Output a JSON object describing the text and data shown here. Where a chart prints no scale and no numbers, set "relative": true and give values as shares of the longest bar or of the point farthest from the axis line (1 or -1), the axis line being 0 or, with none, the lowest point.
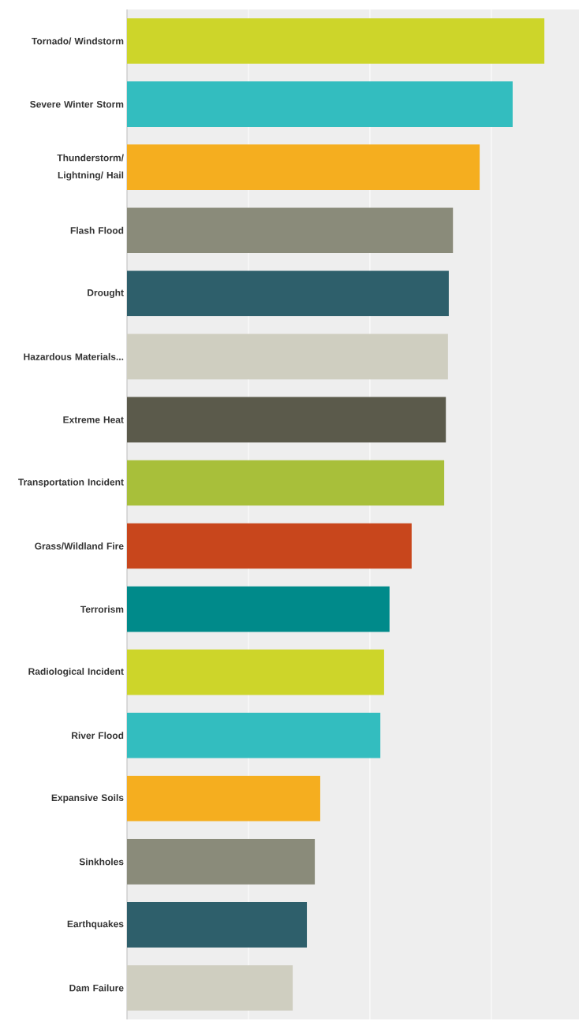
{
  "chart_data": {
    "type": "bar",
    "orientation": "horizontal",
    "relative": true,
    "grid": "x",
    "categories": [
      "Tornado/ Windstorm",
      "Severe Winter Storm",
      "Thunderstorm/ Lightning/ Hail",
      "Flash Flood",
      "Drought",
      "Hazardous Materials...",
      "Extreme Heat",
      "Transportation Incident",
      "Grass/Wildland Fire",
      "Terrorism",
      "Radiological Incident",
      "River Flood",
      "Expansive Soils",
      "Sinkholes",
      "Earthquakes",
      "Dam Failure"
    ],
    "values": [
      1,
      0.924,
      0.845,
      0.781,
      0.771,
      0.769,
      0.764,
      0.76,
      0.682,
      0.629,
      0.616,
      0.607,
      0.463,
      0.45,
      0.431,
      0.397
    ],
    "colors": [
      "#cdd52a",
      "#33bdbf",
      "#f5ae1f",
      "#8a8b7a",
      "#2e5f6b",
      "#cfcec0",
      "#5b5a4b",
      "#a8bf3a",
      "#c8461c",
      "#008a8a",
      "#cdd52a",
      "#33bdbf",
      "#f5ae1f",
      "#8a8b7a",
      "#2e5f6b",
      "#cfcec0"
    ]
  }
}
